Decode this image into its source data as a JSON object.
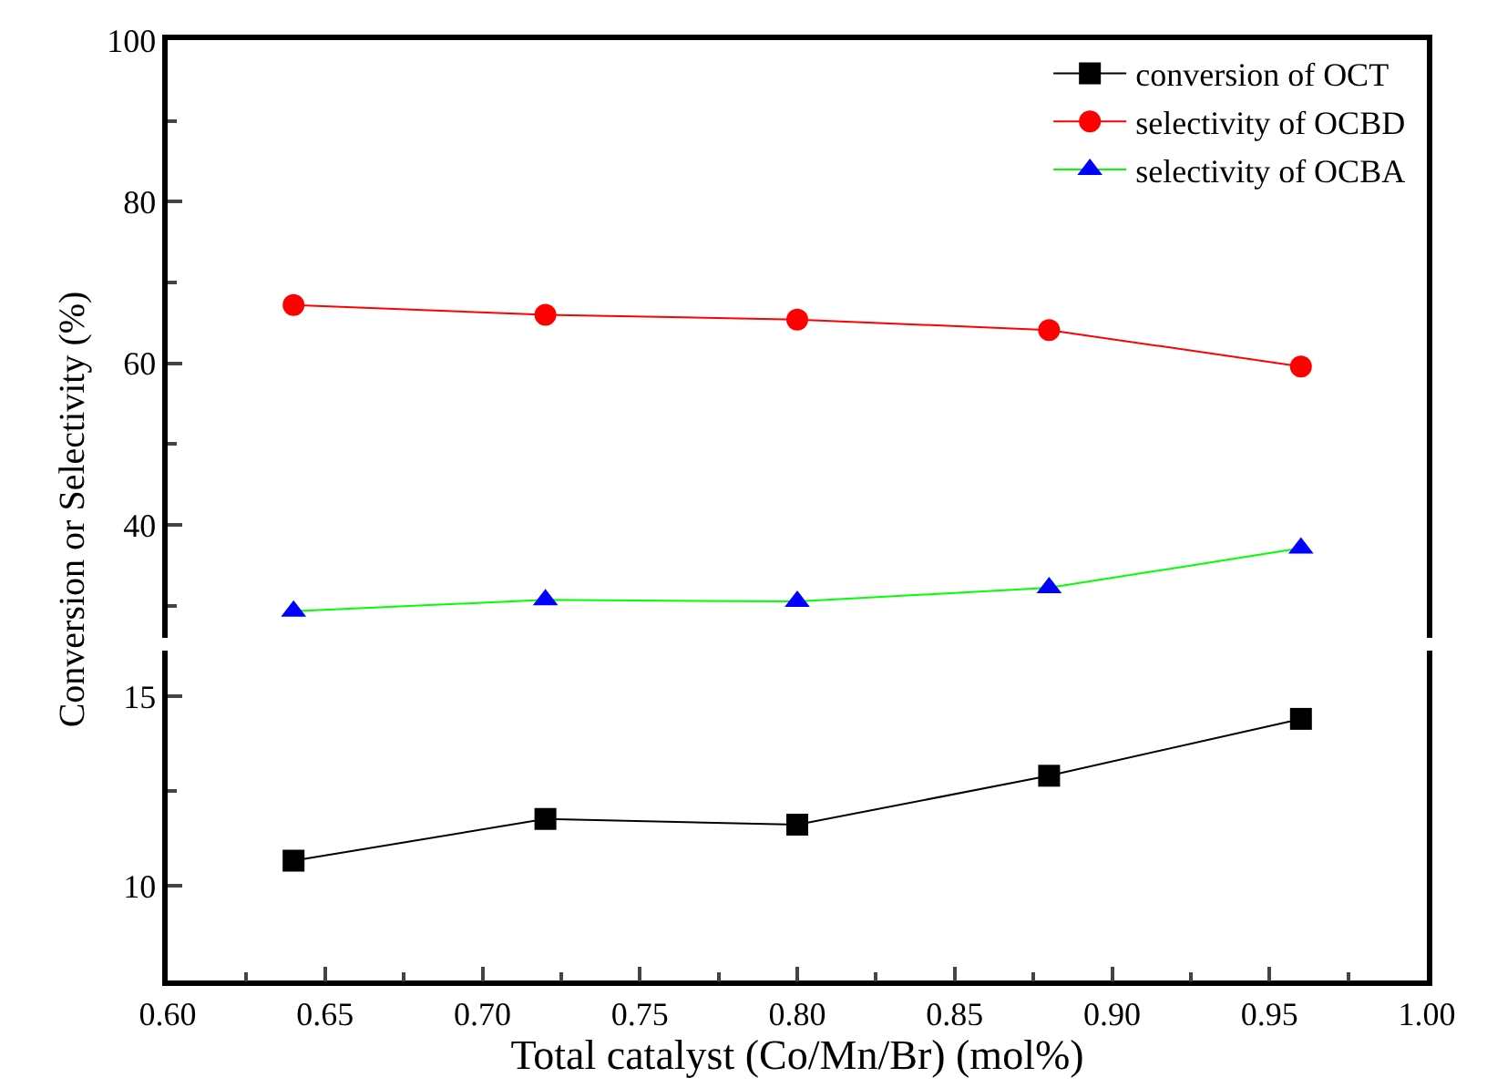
{
  "chart_data": [
    {
      "type": "line",
      "ylabel": "Conversion or Selectivity (%)",
      "x": [
        0.64,
        0.72,
        0.8,
        0.88,
        0.96
      ],
      "xlim": [
        0.6,
        1.0
      ],
      "ylim": [
        26,
        100
      ],
      "yticks": [
        40,
        60,
        80,
        100,
        {
          "value": 30,
          "label": null
        },
        {
          "value": 50,
          "label": null
        },
        {
          "value": 70,
          "label": null
        },
        {
          "value": 90,
          "label": null
        }
      ],
      "tick_labels": "y",
      "legend": "top right",
      "series": [
        {
          "name": "selectivity of OCBD",
          "color": "#ff0000",
          "marker": "circle",
          "values": [
            67.2,
            66.0,
            65.4,
            64.1,
            59.6
          ]
        },
        {
          "name": "selectivity of OCBA",
          "color": "#00ff00",
          "colors": [
            "#0000ff",
            "#0000ff",
            "#0000ff",
            "#0000ff",
            "#0000ff"
          ],
          "marker": "triangle",
          "values": [
            29.3,
            30.7,
            30.5,
            32.2,
            37.1
          ]
        }
      ]
    },
    {
      "type": "line",
      "xlabel": "Total catalyst (Co/Mn/Br) (mol%)",
      "x": [
        0.64,
        0.72,
        0.8,
        0.88,
        0.96
      ],
      "xlim": [
        0.6,
        1.0
      ],
      "xticks": [
        {
          "value": 0.6,
          "label": "0.60"
        },
        0.65,
        {
          "value": 0.7,
          "label": "0.70"
        },
        0.75,
        {
          "value": 0.8,
          "label": "0.80"
        },
        0.85,
        {
          "value": 0.9,
          "label": "0.90"
        },
        0.95,
        {
          "value": 1.0,
          "label": "1.00"
        },
        {
          "value": 0.625,
          "label": null
        },
        {
          "value": 0.675,
          "label": null
        },
        {
          "value": 0.725,
          "label": null
        },
        {
          "value": 0.775,
          "label": null
        },
        {
          "value": 0.825,
          "label": null
        },
        {
          "value": 0.875,
          "label": null
        },
        {
          "value": 0.925,
          "label": null
        },
        {
          "value": 0.975,
          "label": null
        }
      ],
      "ylim": [
        7.5,
        16.2
      ],
      "yticks": [
        10,
        15,
        {
          "value": 12.5,
          "label": null
        }
      ],
      "series": [
        {
          "name": "conversion of OCT",
          "color": "#000000",
          "marker": "square",
          "values": [
            10.66,
            11.76,
            11.61,
            12.9,
            14.4
          ]
        }
      ]
    }
  ]
}
